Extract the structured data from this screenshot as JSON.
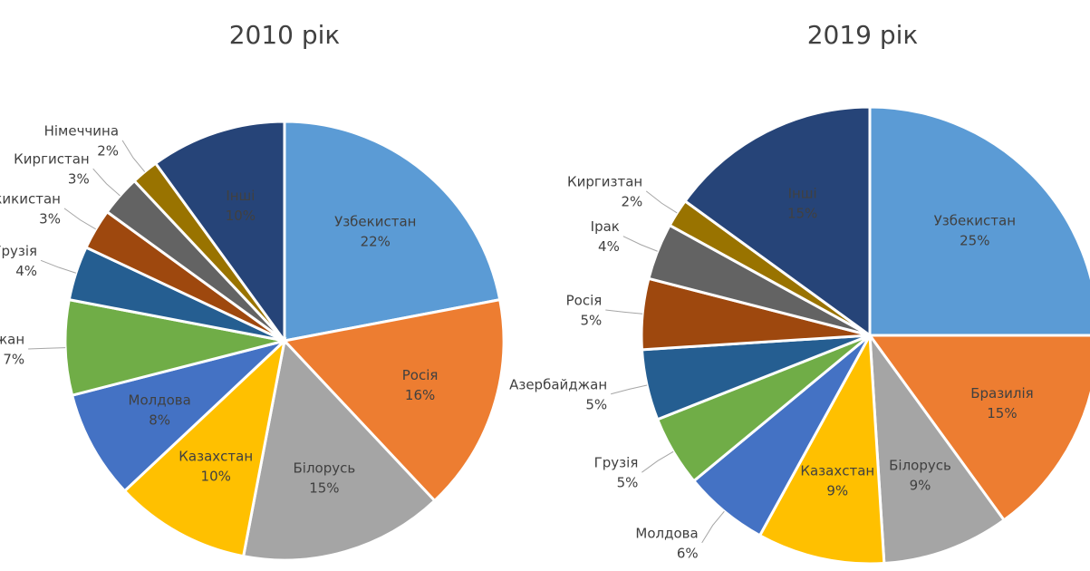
{
  "chart_data": [
    {
      "type": "pie",
      "title": "2010 рік",
      "categories": [
        "Узбекистан",
        "Росія",
        "Білорусь",
        "Казахстан",
        "Молдова",
        "Азербайджан",
        "Грузія",
        "Татжикистан",
        "Киргистан",
        "Німеччина",
        "Інші"
      ],
      "values": [
        22,
        16,
        15,
        10,
        8,
        7,
        4,
        3,
        3,
        2,
        10
      ],
      "value_labels": [
        "22%",
        "16%",
        "15%",
        "10%",
        "8%",
        "7%",
        "4%",
        "3%",
        "3%",
        "2%",
        "10%"
      ],
      "colors": [
        "#5b9bd5",
        "#ed7d31",
        "#a5a5a5",
        "#ffc000",
        "#4472c4",
        "#70ad47",
        "#255e91",
        "#9e480e",
        "#636363",
        "#997300",
        "#264478"
      ]
    },
    {
      "type": "pie",
      "title": "2019 рік",
      "categories": [
        "Узбекистан",
        "Бразилія",
        "Білорусь",
        "Казахстан",
        "Молдова",
        "Грузія",
        "Азербайджан",
        "Росія",
        "Ірак",
        "Киргизтан",
        "Інші"
      ],
      "values": [
        25,
        15,
        9,
        9,
        6,
        5,
        5,
        5,
        4,
        2,
        15
      ],
      "value_labels": [
        "25%",
        "15%",
        "9%",
        "9%",
        "6%",
        "5%",
        "5%",
        "5%",
        "4%",
        "2%",
        "15%"
      ],
      "colors": [
        "#5b9bd5",
        "#ed7d31",
        "#a5a5a5",
        "#ffc000",
        "#4472c4",
        "#70ad47",
        "#255e91",
        "#9e480e",
        "#636363",
        "#997300",
        "#264478"
      ]
    }
  ]
}
